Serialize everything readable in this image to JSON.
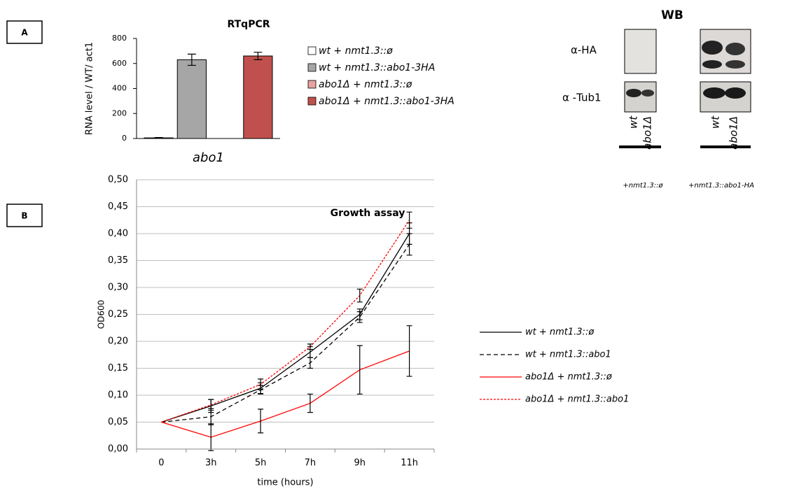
{
  "panels": [
    {
      "label": "A"
    },
    {
      "label": "B"
    }
  ],
  "western_blot": {
    "title": "WB",
    "rows": [
      "α-HA",
      "α -Tub1"
    ],
    "lanes": [
      "wt",
      "abo1Δ"
    ],
    "conditions": [
      "+nmt1.3::ø",
      "+nmt1.3::abo1-HA"
    ]
  },
  "chart_data": [
    {
      "type": "bar",
      "title": "RTqPCR",
      "y_label": "RNA level / WT/ act1",
      "categories": [
        "abo1"
      ],
      "series": [
        {
          "name": "wt + nmt1.3::ø",
          "color": "#ffffff",
          "values": [
            5
          ],
          "errors": [
            3
          ]
        },
        {
          "name": "wt + nmt1.3::abo1-3HA",
          "color": "#a6a6a6",
          "values": [
            630
          ],
          "errors": [
            45
          ]
        },
        {
          "name": "abo1Δ + nmt1.3::ø",
          "color": "#e6a3a1",
          "values": [
            0
          ],
          "errors": [
            0
          ]
        },
        {
          "name": "abo1Δ + nmt1.3::abo1-3HA",
          "color": "#c0504d",
          "values": [
            660
          ],
          "errors": [
            30
          ]
        }
      ],
      "ylim": [
        0,
        800
      ],
      "yticks": [
        0,
        200,
        400,
        600,
        800
      ],
      "grid": false
    },
    {
      "type": "line",
      "title": "Growth assay",
      "x_label": "time (hours)",
      "y_label": "OD600",
      "categories": [
        "0",
        "3h",
        "5h",
        "7h",
        "9h",
        "11h"
      ],
      "series": [
        {
          "name": "wt + nmt1.3::ø",
          "color": "#000000",
          "style": "solid",
          "values": [
            0.05,
            0.08,
            0.113,
            0.18,
            0.25,
            0.4
          ],
          "errors": [
            0,
            0.012,
            0.01,
            0.01,
            0.01,
            0.02
          ]
        },
        {
          "name": "wt + nmt1.3::abo1",
          "color": "#000000",
          "style": "dashed",
          "values": [
            0.05,
            0.06,
            0.11,
            0.16,
            0.245,
            0.38
          ],
          "errors": [
            0,
            0.015,
            0.008,
            0.01,
            0.01,
            0.02
          ]
        },
        {
          "name": "abo1Δ + nmt1.3::ø",
          "color": "#ff0000",
          "style": "solid",
          "values": [
            0.05,
            0.022,
            0.052,
            0.085,
            0.147,
            0.182
          ],
          "errors": [
            0,
            0.025,
            0.022,
            0.017,
            0.045,
            0.047
          ]
        },
        {
          "name": "abo1Δ + nmt1.3::abo1",
          "color": "#ff0000",
          "style": "dashed",
          "values": [
            0.05,
            0.082,
            0.12,
            0.19,
            0.285,
            0.425
          ],
          "errors": [
            0,
            0.01,
            0.01,
            0.005,
            0.012,
            0.015
          ]
        }
      ],
      "ylim": [
        0,
        0.5
      ],
      "yticks": [
        {
          "value": 0,
          "label": "0,00"
        },
        {
          "value": 0.05,
          "label": "0,05"
        },
        {
          "value": 0.1,
          "label": "0,10"
        },
        {
          "value": 0.15,
          "label": "0,15"
        },
        {
          "value": 0.2,
          "label": "0,20"
        },
        {
          "value": 0.25,
          "label": "0,25"
        },
        {
          "value": 0.3,
          "label": "0,30"
        },
        {
          "value": 0.35,
          "label": "0,35"
        },
        {
          "value": 0.4,
          "label": "0,40"
        },
        {
          "value": 0.45,
          "label": "0,45"
        },
        {
          "value": 0.5,
          "label": "0,50"
        }
      ],
      "grid": true
    }
  ]
}
